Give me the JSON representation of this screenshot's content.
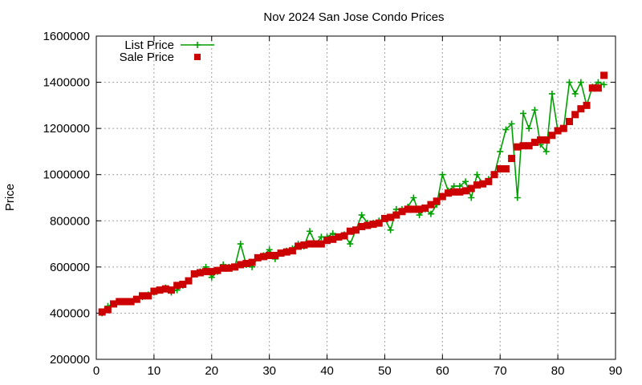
{
  "chart_data": {
    "type": "line",
    "title": "Nov 2024 San Jose Condo Prices",
    "xlabel": "",
    "ylabel": "Price",
    "xlim": [
      0,
      90
    ],
    "ylim": [
      200000,
      1600000
    ],
    "x_ticks": [
      0,
      10,
      20,
      30,
      40,
      50,
      60,
      70,
      80,
      90
    ],
    "y_ticks": [
      200000,
      400000,
      600000,
      800000,
      1000000,
      1200000,
      1400000,
      1600000
    ],
    "grid": true,
    "legend_position": "top-left",
    "series": [
      {
        "name": "List Price",
        "style": "lines+crosses",
        "color": "#00a000",
        "values": [
          400000,
          430000,
          440000,
          450000,
          450000,
          450000,
          460000,
          470000,
          480000,
          490000,
          500000,
          510000,
          490000,
          500000,
          520000,
          540000,
          570000,
          580000,
          600000,
          555000,
          580000,
          610000,
          600000,
          600000,
          700000,
          610000,
          600000,
          640000,
          650000,
          675000,
          635000,
          660000,
          670000,
          680000,
          700000,
          690000,
          755000,
          700000,
          730000,
          730000,
          745000,
          730000,
          740000,
          700000,
          760000,
          825000,
          790000,
          790000,
          800000,
          810000,
          760000,
          850000,
          850000,
          860000,
          900000,
          825000,
          850000,
          830000,
          870000,
          1000000,
          930000,
          950000,
          950000,
          970000,
          900000,
          1000000,
          960000,
          980000,
          1000000,
          1100000,
          1195000,
          1220000,
          900000,
          1265000,
          1200000,
          1280000,
          1130000,
          1100000,
          1350000,
          1190000,
          1200000,
          1400000,
          1350000,
          1400000,
          1300000,
          1380000,
          1400000,
          1390000
        ]
      },
      {
        "name": "Sale Price",
        "style": "squares",
        "color": "#cc0000",
        "values": [
          405000,
          415000,
          440000,
          450000,
          450000,
          450000,
          460000,
          475000,
          475000,
          495000,
          500000,
          505000,
          500000,
          520000,
          525000,
          540000,
          570000,
          575000,
          580000,
          580000,
          585000,
          595000,
          595000,
          600000,
          610000,
          615000,
          620000,
          640000,
          645000,
          650000,
          650000,
          660000,
          665000,
          670000,
          690000,
          695000,
          700000,
          700000,
          700000,
          715000,
          720000,
          730000,
          735000,
          755000,
          760000,
          775000,
          780000,
          785000,
          790000,
          810000,
          815000,
          825000,
          840000,
          850000,
          850000,
          850000,
          855000,
          870000,
          885000,
          905000,
          920000,
          925000,
          925000,
          930000,
          940000,
          955000,
          960000,
          970000,
          1000000,
          1025000,
          1025000,
          1070000,
          1120000,
          1125000,
          1125000,
          1140000,
          1150000,
          1150000,
          1170000,
          1190000,
          1200000,
          1230000,
          1260000,
          1285000,
          1300000,
          1375000,
          1375000,
          1430000
        ]
      }
    ]
  }
}
